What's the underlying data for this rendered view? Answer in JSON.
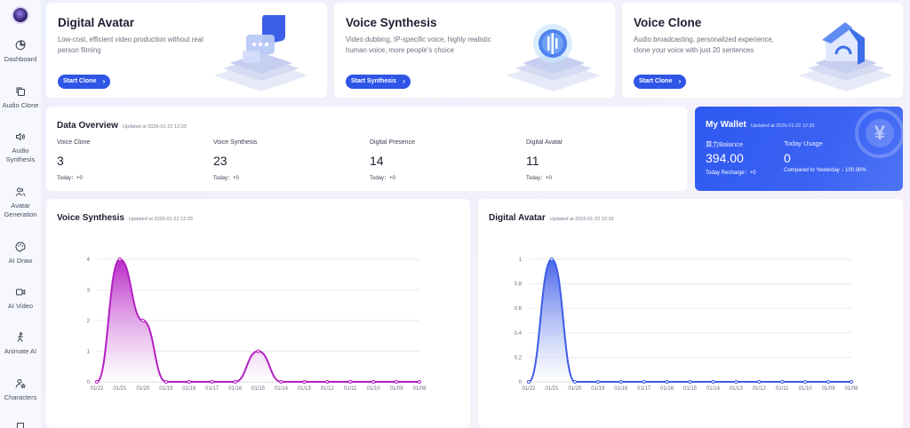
{
  "sidebar": {
    "items": [
      {
        "label": "Dashboard",
        "icon": "pie-chart-icon"
      },
      {
        "label": "Audio Clone",
        "icon": "copy-icon"
      },
      {
        "label": "Audio Synthesis",
        "icon": "speaker-icon"
      },
      {
        "label": "Avatar Generation",
        "icon": "users-icon"
      },
      {
        "label": "AI Draw",
        "icon": "palette-icon"
      },
      {
        "label": "AI Video",
        "icon": "video-icon"
      },
      {
        "label": "Animate AI",
        "icon": "person-running-icon"
      },
      {
        "label": "Characters",
        "icon": "character-star-icon"
      }
    ]
  },
  "features": [
    {
      "title": "Digital Avatar",
      "desc": "Low-cost, efficient video production without real person filming",
      "button": "Start Clone"
    },
    {
      "title": "Voice Synthesis",
      "desc": "Video dubbing, IP-specific voice, highly realistic human voice, more people's choice",
      "button": "Start Synthesis"
    },
    {
      "title": "Voice Clone",
      "desc": "Audio broadcasting, personalized experience, clone your voice with just 20 sentences",
      "button": "Start Clone"
    }
  ],
  "overview": {
    "title": "Data Overview",
    "updated": "Updated at 2026-01-22 12:33",
    "stats": [
      {
        "label": "Voice Clone",
        "value": "3",
        "today": "Today：+0"
      },
      {
        "label": "Voice Synthesis",
        "value": "23",
        "today": "Today：+0"
      },
      {
        "label": "Digital Presence",
        "value": "14",
        "today": "Today：+0"
      },
      {
        "label": "Digital Avatar",
        "value": "11",
        "today": "Today：+0"
      }
    ]
  },
  "wallet": {
    "title": "My Wallet",
    "updated": "Updated at 2026-01-22 12:33",
    "balance_label": "算力Balance",
    "balance_value": "394.00",
    "recharge": "Today Recharge：+0",
    "usage_label": "Today Usage",
    "usage_value": "0",
    "compare": "Compared to Yesterday ↓ 100.00%"
  },
  "colors": {
    "accent": "#2f55e6",
    "voice_synthesis_line": "#b51fc4",
    "digital_avatar_line": "#3e5ce8"
  },
  "chart_data": [
    {
      "type": "area",
      "title": "Voice Synthesis",
      "updated": "Updated at 2026-01-22 12:33",
      "x": [
        "01/22",
        "01/21",
        "01/20",
        "01/19",
        "01/18",
        "01/17",
        "01/16",
        "01/15",
        "01/14",
        "01/13",
        "01/12",
        "01/11",
        "01/10",
        "01/09",
        "01/08"
      ],
      "values": [
        0,
        4,
        2,
        0,
        0,
        0,
        0,
        1,
        0,
        0,
        0,
        0,
        0,
        0,
        0
      ],
      "y_ticks": [
        "0",
        "1",
        "2",
        "3",
        "4"
      ],
      "ylim": [
        0,
        4
      ],
      "grid": true
    },
    {
      "type": "area",
      "title": "Digital Avatar",
      "updated": "Updated at 2026-01-22 12:33",
      "x": [
        "01/22",
        "01/21",
        "01/20",
        "01/19",
        "01/18",
        "01/17",
        "01/16",
        "01/15",
        "01/14",
        "01/13",
        "01/12",
        "01/11",
        "01/10",
        "01/09",
        "01/08"
      ],
      "values": [
        0,
        1,
        0,
        0,
        0,
        0,
        0,
        0,
        0,
        0,
        0,
        0,
        0,
        0,
        0
      ],
      "y_ticks": [
        "0",
        "0.2",
        "0.4",
        "0.6",
        "0.8",
        "1"
      ],
      "ylim": [
        0,
        1
      ],
      "grid": true
    }
  ]
}
